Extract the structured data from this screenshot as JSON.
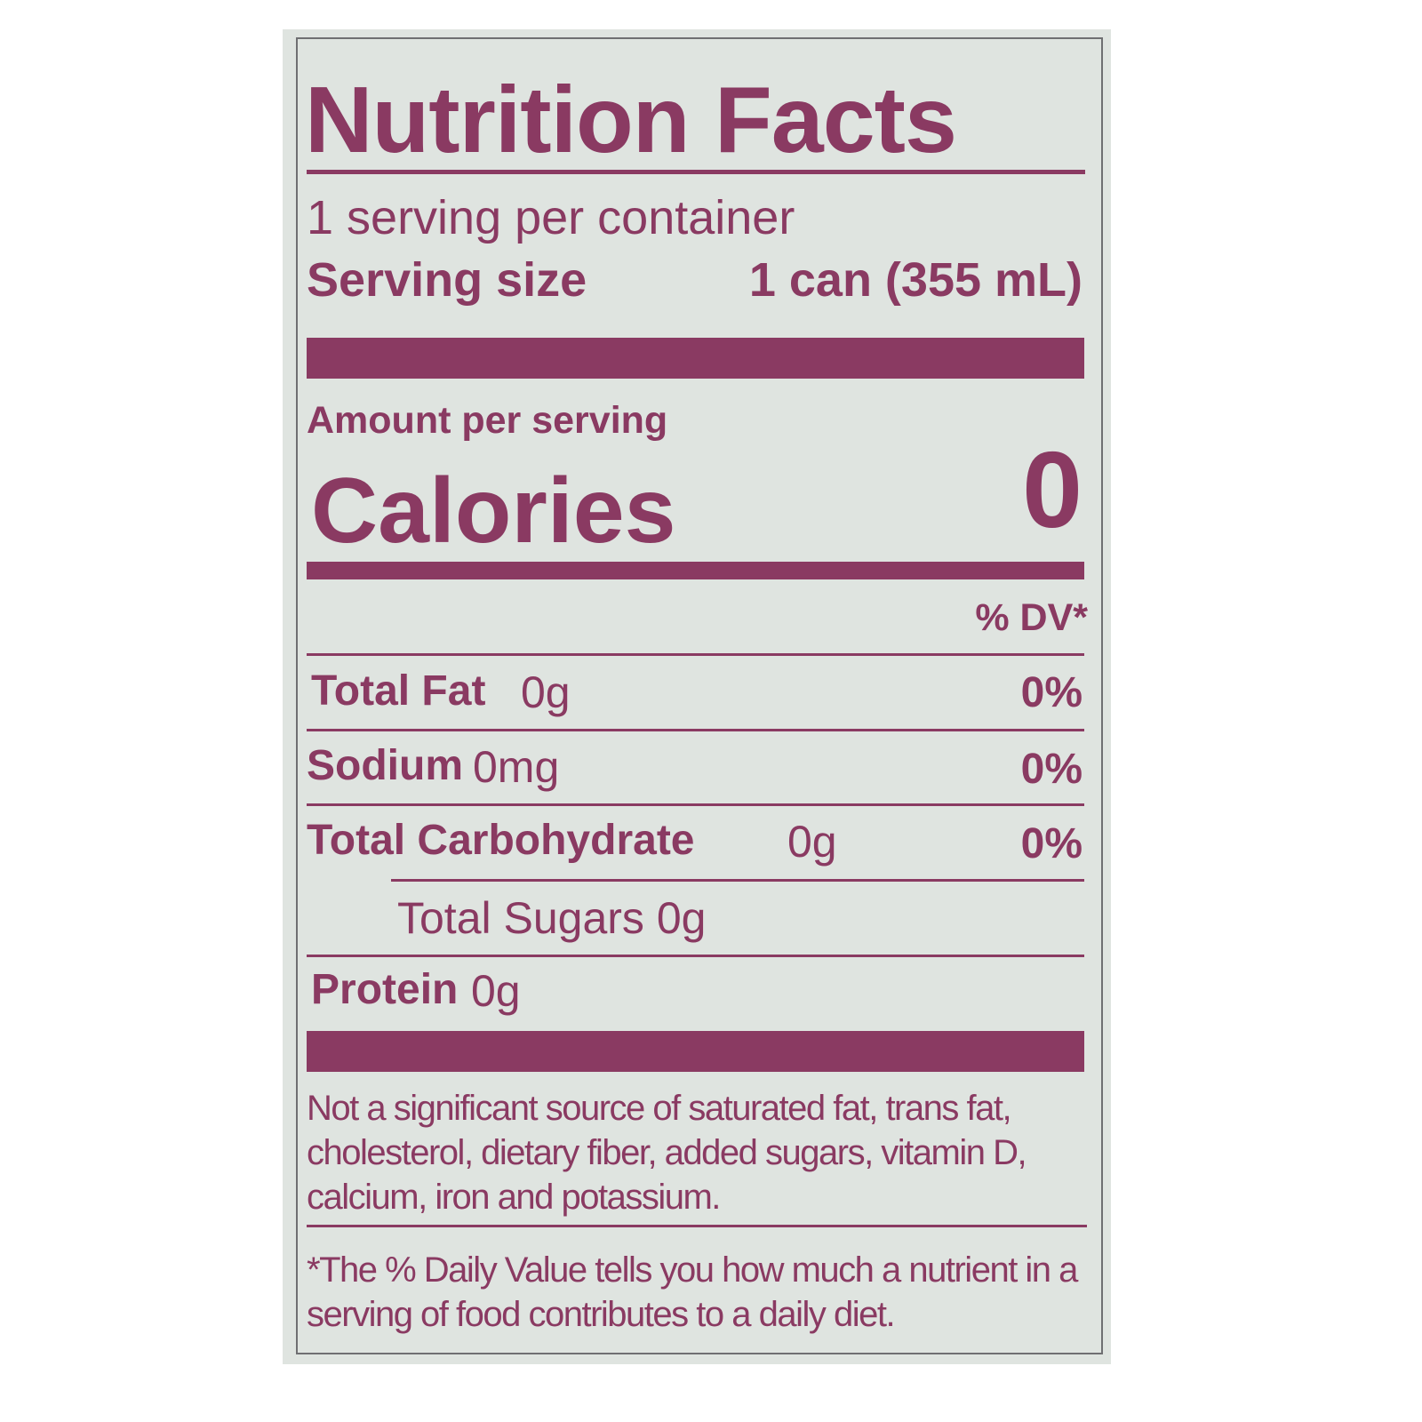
{
  "title": "Nutrition Facts",
  "servings_per_container": "1 serving per container",
  "serving_size": {
    "label": "Serving size",
    "value": "1 can (355 mL)"
  },
  "amount_per_serving": "Amount per serving",
  "calories": {
    "label": "Calories",
    "value": "0"
  },
  "dv_header": "% DV*",
  "nutrients": [
    {
      "label": "Total Fat",
      "amount": "0g",
      "dv": "0%"
    },
    {
      "label": "Sodium",
      "amount": "0mg",
      "dv": "0%"
    },
    {
      "label": "Total Carbohydrate",
      "amount": "0g",
      "dv": "0%"
    },
    {
      "label": "Total Sugars 0g"
    },
    {
      "label": "Protein",
      "amount": "0g"
    }
  ],
  "not_significant": "Not a significant source of saturated fat, trans fat, cholesterol, dietary fiber, added sugars, vitamin D, calcium, iron and potassium.",
  "dv_footnote": "*The % Daily Value tells you how much a nutrient in a serving of food contributes to a daily diet.",
  "colors": {
    "ink": "#8a3a62",
    "background": "#dfe4e0"
  }
}
